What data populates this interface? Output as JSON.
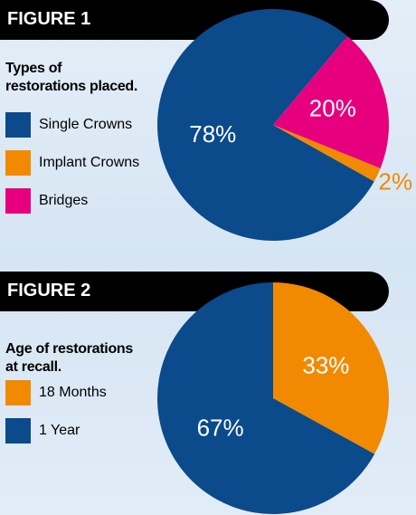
{
  "chart_data": [
    {
      "type": "pie",
      "title": "FIGURE 1",
      "subtitle": "Types of\nrestorations placed.",
      "categories": [
        "Single Crowns",
        "Implant Crowns",
        "Bridges"
      ],
      "values": [
        78,
        2,
        20
      ],
      "value_labels": [
        "78%",
        "2%",
        "20%"
      ],
      "colors": [
        "#0b4a8b",
        "#f18a00",
        "#e6007e"
      ]
    },
    {
      "type": "pie",
      "title": "FIGURE 2",
      "subtitle": "Age of restorations\nat recall.",
      "categories": [
        "18 Months",
        "1 Year"
      ],
      "values": [
        33,
        67
      ],
      "value_labels": [
        "33%",
        "67%"
      ],
      "colors": [
        "#f18a00",
        "#0b4a8b"
      ]
    }
  ]
}
